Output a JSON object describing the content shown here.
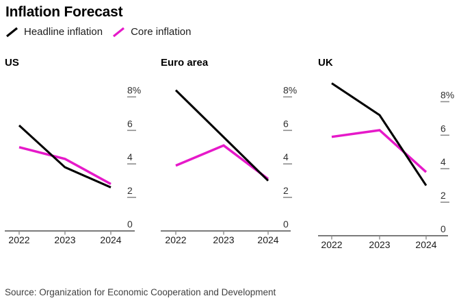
{
  "header": {
    "title": "Inflation Forecast",
    "legend": [
      {
        "label": "Headline inflation",
        "color": "#000000"
      },
      {
        "label": "Core inflation",
        "color": "#e619c9"
      }
    ]
  },
  "chart_data": [
    {
      "type": "line",
      "title": "US",
      "x": [
        "2022",
        "2023",
        "2024"
      ],
      "yticks": [
        0,
        2,
        4,
        6,
        8
      ],
      "ytick_top_label": "8%",
      "ylim": [
        0,
        8.4
      ],
      "grid": false,
      "legend_position": "top-of-figure",
      "series": [
        {
          "name": "Headline inflation",
          "color": "#000000",
          "values": [
            6.3,
            3.8,
            2.6
          ]
        },
        {
          "name": "Core inflation",
          "color": "#e619c9",
          "values": [
            5.0,
            4.3,
            2.8
          ]
        }
      ]
    },
    {
      "type": "line",
      "title": "Euro area",
      "x": [
        "2022",
        "2023",
        "2024"
      ],
      "yticks": [
        0,
        2,
        4,
        6,
        8
      ],
      "ytick_top_label": "8%",
      "ylim": [
        0,
        8.6
      ],
      "grid": false,
      "legend_position": "top-of-figure",
      "series": [
        {
          "name": "Headline inflation",
          "color": "#000000",
          "values": [
            8.4,
            5.6,
            3.0
          ]
        },
        {
          "name": "Core inflation",
          "color": "#e619c9",
          "values": [
            3.9,
            5.1,
            3.1
          ]
        }
      ]
    },
    {
      "type": "line",
      "title": "UK",
      "x": [
        "2022",
        "2023",
        "2024"
      ],
      "yticks": [
        0,
        2,
        4,
        6,
        8
      ],
      "ytick_top_label": "8%",
      "ylim": [
        0,
        9.3
      ],
      "grid": false,
      "legend_position": "top-of-figure",
      "series": [
        {
          "name": "Headline inflation",
          "color": "#000000",
          "values": [
            9.1,
            7.2,
            3.0
          ]
        },
        {
          "name": "Core inflation",
          "color": "#e619c9",
          "values": [
            5.9,
            6.3,
            3.8
          ]
        }
      ]
    }
  ],
  "footer": {
    "source": "Source: Organization for Economic Cooperation and Development"
  }
}
